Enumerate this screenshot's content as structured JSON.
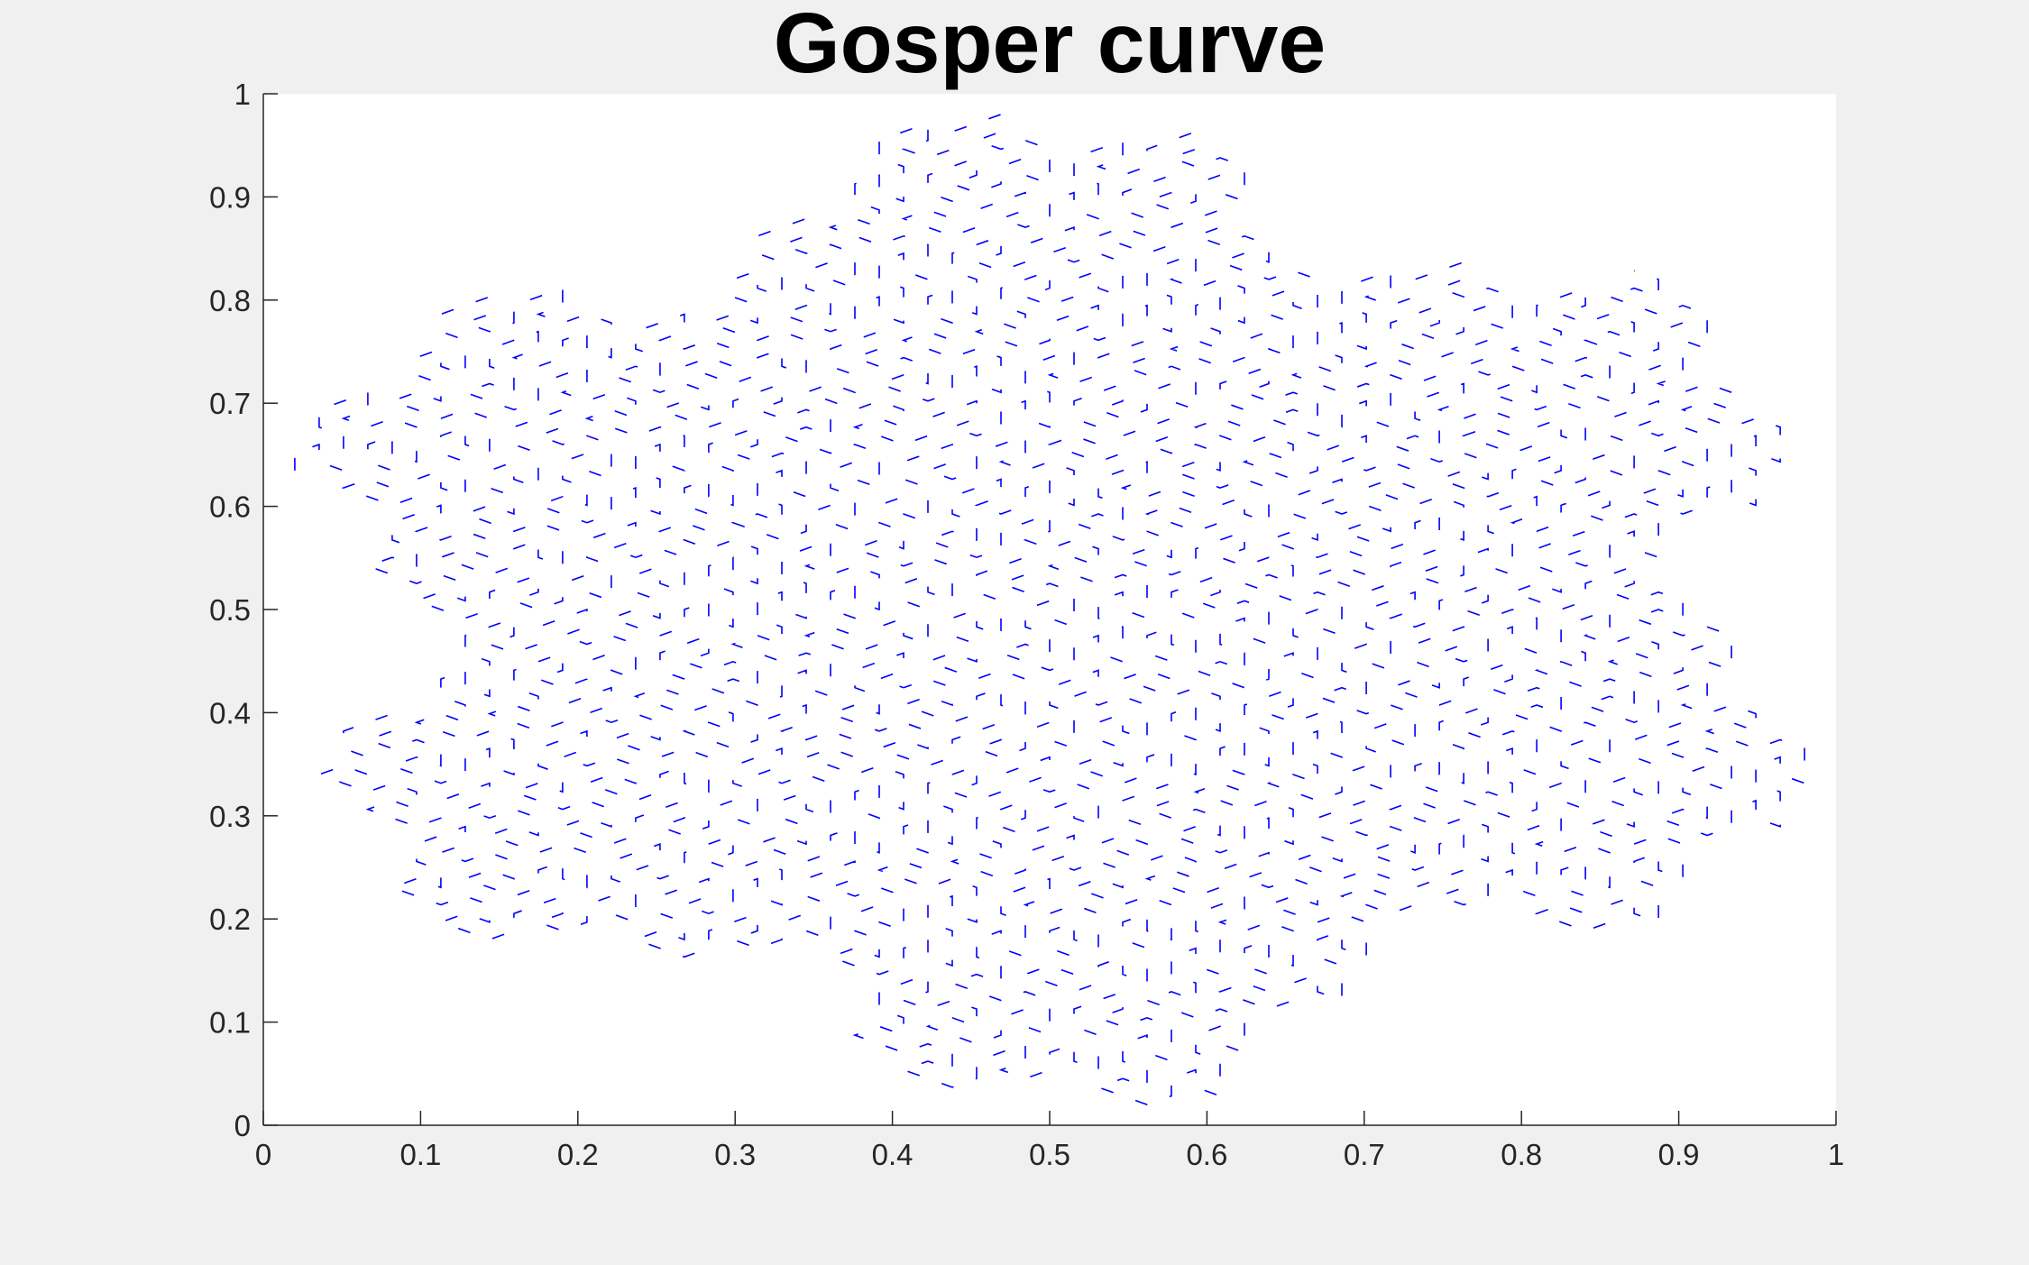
{
  "chart_data": {
    "type": "line",
    "title": "Gosper curve",
    "xlabel": "",
    "ylabel": "",
    "xlim": [
      0,
      1
    ],
    "ylim": [
      0,
      1
    ],
    "xticks": [
      0,
      0.1,
      0.2,
      0.3,
      0.4,
      0.5,
      0.6,
      0.7,
      0.8,
      0.9,
      1
    ],
    "yticks": [
      0,
      0.1,
      0.2,
      0.3,
      0.4,
      0.5,
      0.6,
      0.7,
      0.8,
      0.9,
      1
    ],
    "xtick_labels": [
      "0",
      "0.1",
      "0.2",
      "0.3",
      "0.4",
      "0.5",
      "0.6",
      "0.7",
      "0.8",
      "0.9",
      "1"
    ],
    "ytick_labels": [
      "0",
      "0.1",
      "0.2",
      "0.3",
      "0.4",
      "0.5",
      "0.6",
      "0.7",
      "0.8",
      "0.9",
      "1"
    ],
    "grid": false,
    "legend": "none",
    "series": [
      {
        "style": "dashed",
        "color": "#0000ff",
        "curve": "Gosper curve (flowsnake), 4 iterations, 2401 segments",
        "lsystem": {
          "axiom": "A",
          "rules": {
            "A": "A-B--B+A++AA+B-",
            "B": "+A-BB--B-A++A+B"
          },
          "angle_deg": 60,
          "iterations": 4
        }
      }
    ]
  },
  "colors": {
    "figure_background": "#f0f0f0",
    "axes_background": "#ffffff",
    "axis": "#262626",
    "line": "#0000ff",
    "title": "#000000"
  }
}
